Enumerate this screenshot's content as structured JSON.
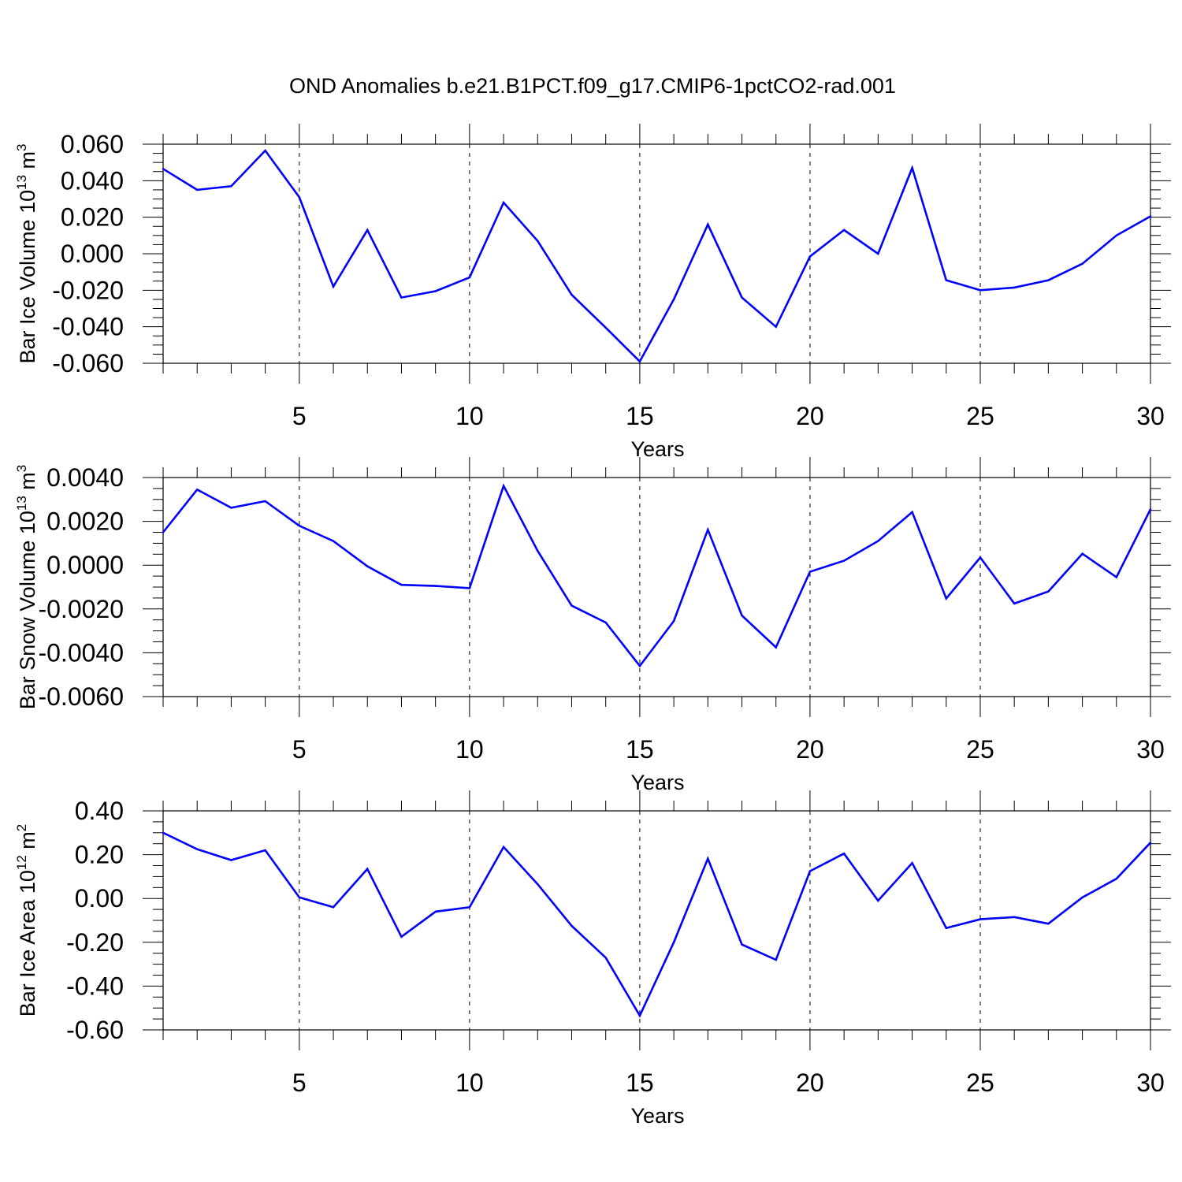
{
  "title": "OND Anomalies b.e21.B1PCT.f09_g17.CMIP6-1pctCO2-rad.001",
  "colors": {
    "line": "#0000ff",
    "axis": "#000000",
    "grid": "#000000"
  },
  "chart_data": [
    {
      "type": "line",
      "xlabel": "Years",
      "ylabel": {
        "main": "Bar Ice Volume 10",
        "sup": "13",
        "unit": " m",
        "unit_sup": "3"
      },
      "xlim": [
        1,
        30
      ],
      "ylim": [
        -0.06,
        0.06
      ],
      "xticks": [
        5,
        10,
        15,
        20,
        25,
        30
      ],
      "xtick_labels": [
        "5",
        "10",
        "15",
        "20",
        "25",
        "30"
      ],
      "yticks": [
        -0.06,
        -0.04,
        -0.02,
        0.0,
        0.02,
        0.04,
        0.06
      ],
      "ytick_labels": [
        "-0.060",
        "-0.040",
        "-0.020",
        "0.000",
        "0.020",
        "0.040",
        "0.060"
      ],
      "grid": "vertical dashed at major x ticks",
      "x": [
        1,
        2,
        3,
        4,
        5,
        6,
        7,
        8,
        9,
        10,
        11,
        12,
        13,
        14,
        15,
        16,
        17,
        18,
        19,
        20,
        21,
        22,
        23,
        24,
        25,
        26,
        27,
        28,
        29,
        30
      ],
      "values": [
        0.0465,
        0.035,
        0.037,
        0.0565,
        0.031,
        -0.018,
        0.013,
        -0.024,
        -0.0205,
        -0.013,
        0.028,
        0.007,
        -0.0225,
        -0.0405,
        -0.059,
        -0.025,
        0.016,
        -0.024,
        -0.04,
        -0.0015,
        0.013,
        0.0,
        0.047,
        -0.0145,
        -0.02,
        -0.0185,
        -0.0145,
        -0.0055,
        0.01,
        0.0205
      ]
    },
    {
      "type": "line",
      "xlabel": "Years",
      "ylabel": {
        "main": "Bar Snow Volume 10",
        "sup": "13",
        "unit": " m",
        "unit_sup": "3"
      },
      "xlim": [
        1,
        30
      ],
      "ylim": [
        -0.006,
        0.004
      ],
      "xticks": [
        5,
        10,
        15,
        20,
        25,
        30
      ],
      "xtick_labels": [
        "5",
        "10",
        "15",
        "20",
        "25",
        "30"
      ],
      "yticks": [
        -0.006,
        -0.004,
        -0.002,
        0.0,
        0.002,
        0.004
      ],
      "ytick_labels": [
        "-0.0060",
        "-0.0040",
        "-0.0020",
        "0.0000",
        "0.0020",
        "0.0040"
      ],
      "grid": "vertical dashed at major x ticks",
      "x": [
        1,
        2,
        3,
        4,
        5,
        6,
        7,
        8,
        9,
        10,
        11,
        12,
        13,
        14,
        15,
        16,
        17,
        18,
        19,
        20,
        21,
        22,
        23,
        24,
        25,
        26,
        27,
        28,
        29,
        30
      ],
      "values": [
        0.0015,
        0.00345,
        0.00262,
        0.00292,
        0.0018,
        0.0011,
        -5e-05,
        -0.0009,
        -0.00095,
        -0.00105,
        0.00362,
        0.00065,
        -0.00185,
        -0.00262,
        -0.0046,
        -0.00255,
        0.00162,
        -0.0023,
        -0.00375,
        -0.0003,
        0.0002,
        0.0011,
        0.00242,
        -0.00152,
        0.00035,
        -0.00175,
        -0.0012,
        0.00052,
        -0.00055,
        0.00255
      ]
    },
    {
      "type": "line",
      "xlabel": "Years",
      "ylabel": {
        "main": "Bar Ice Area 10",
        "sup": "12",
        "unit": " m",
        "unit_sup": "2"
      },
      "xlim": [
        1,
        30
      ],
      "ylim": [
        -0.6,
        0.4
      ],
      "xticks": [
        5,
        10,
        15,
        20,
        25,
        30
      ],
      "xtick_labels": [
        "5",
        "10",
        "15",
        "20",
        "25",
        "30"
      ],
      "yticks": [
        -0.6,
        -0.4,
        -0.2,
        0.0,
        0.2,
        0.4
      ],
      "ytick_labels": [
        "-0.60",
        "-0.40",
        "-0.20",
        "0.00",
        "0.20",
        "0.40"
      ],
      "grid": "vertical dashed at major x ticks",
      "x": [
        1,
        2,
        3,
        4,
        5,
        6,
        7,
        8,
        9,
        10,
        11,
        12,
        13,
        14,
        15,
        16,
        17,
        18,
        19,
        20,
        21,
        22,
        23,
        24,
        25,
        26,
        27,
        28,
        29,
        30
      ],
      "values": [
        0.3,
        0.225,
        0.175,
        0.22,
        0.005,
        -0.04,
        0.135,
        -0.175,
        -0.06,
        -0.04,
        0.235,
        0.065,
        -0.125,
        -0.27,
        -0.535,
        -0.2,
        0.182,
        -0.21,
        -0.28,
        0.125,
        0.205,
        -0.01,
        0.162,
        -0.135,
        -0.095,
        -0.085,
        -0.115,
        0.005,
        0.09,
        0.255
      ]
    }
  ]
}
